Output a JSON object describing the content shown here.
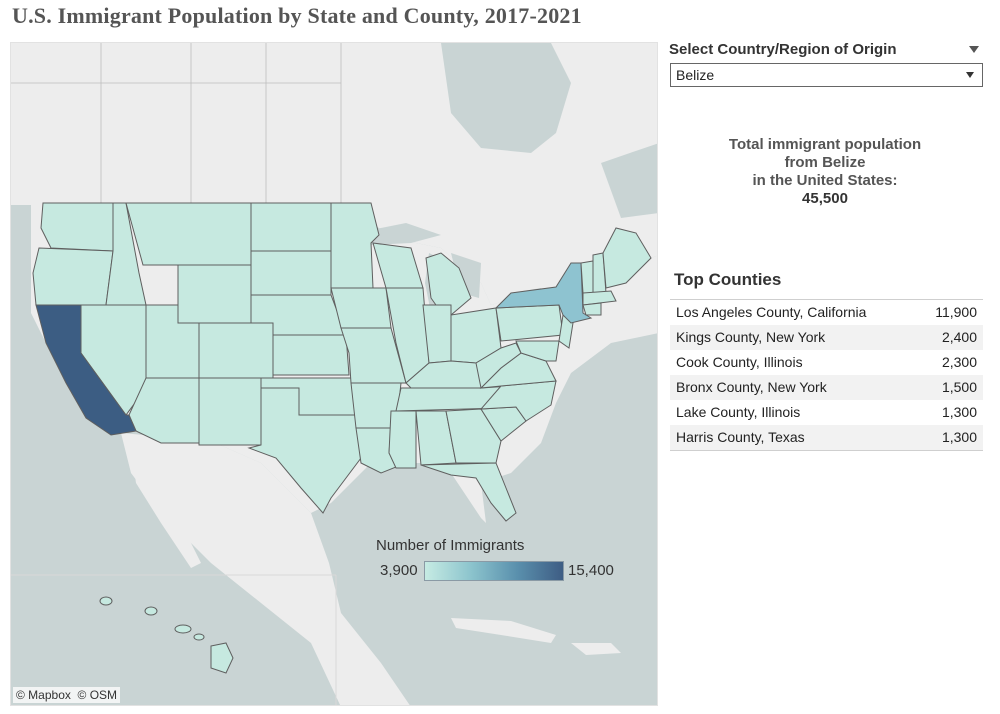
{
  "title": "U.S. Immigrant Population by State and County, 2017-2021",
  "filter": {
    "label": "Select Country/Region of Origin",
    "selected": "Belize"
  },
  "total": {
    "line1": "Total immigrant population",
    "line2": "from Belize",
    "line3": "in the United States:",
    "value": "45,500"
  },
  "top_counties": {
    "title": "Top Counties",
    "rows": [
      {
        "name": "Los Angeles County, California",
        "value": "11,900"
      },
      {
        "name": "Kings County, New York",
        "value": "2,400"
      },
      {
        "name": "Cook County, Illinois",
        "value": "2,300"
      },
      {
        "name": "Bronx County, New York",
        "value": "1,500"
      },
      {
        "name": "Lake County, Illinois",
        "value": "1,300"
      },
      {
        "name": "Harris County, Texas",
        "value": "1,300"
      }
    ]
  },
  "legend": {
    "title": "Number of Immigrants",
    "min": "3,900",
    "max": "15,400"
  },
  "attribution": "© Mapbox  © OSM",
  "colors": {
    "default_state": "#c6e9e0",
    "california": "#3c5d83",
    "new_york": "#8ec3d0",
    "water": "#c9d4d4",
    "land": "#ededed"
  }
}
